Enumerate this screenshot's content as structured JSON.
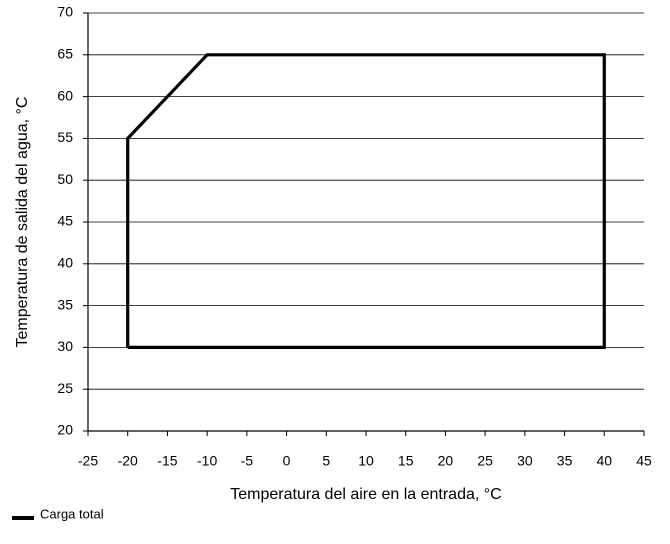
{
  "chart_data": {
    "type": "line",
    "x_label": "Temperatura del aire en la entrada, °C",
    "y_label": "Temperatura de salida del agua, °C",
    "x": [
      -20,
      -20,
      -10,
      40,
      40,
      -20
    ],
    "series": [
      {
        "name": "Carga total",
        "color": "#000000",
        "values": [
          30,
          55,
          65,
          65,
          30,
          30
        ]
      }
    ],
    "xlim": [
      -25,
      45
    ],
    "ylim": [
      20,
      70
    ],
    "xticks": [
      -25,
      -20,
      -15,
      -10,
      -5,
      0,
      5,
      10,
      15,
      20,
      25,
      30,
      35,
      40,
      45
    ],
    "yticks": [
      20,
      25,
      30,
      35,
      40,
      45,
      50,
      55,
      60,
      65,
      70
    ],
    "grid": true,
    "legend": "bottom-left"
  }
}
